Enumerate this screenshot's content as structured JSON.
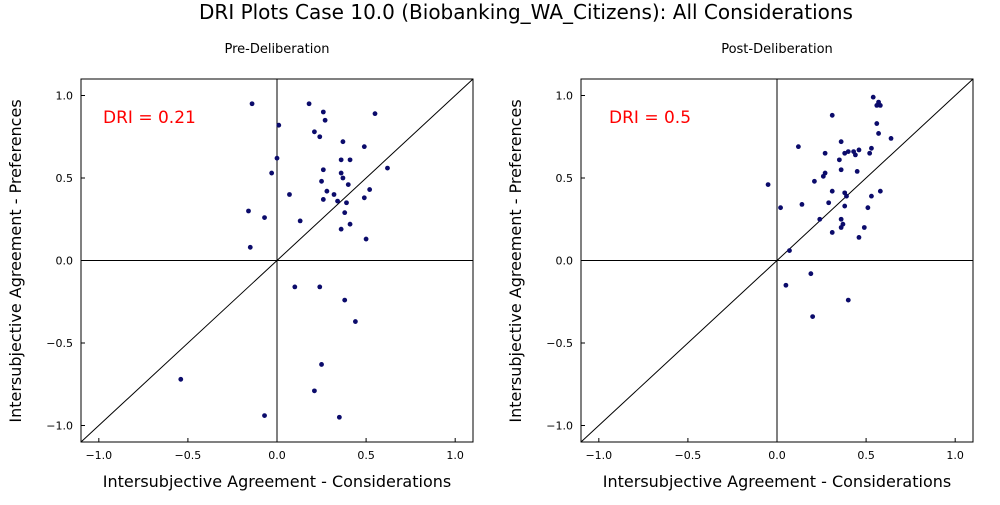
{
  "title": "DRI Plots Case 10.0 (Biobanking_WA_Citizens): All Considerations",
  "chart_data": [
    {
      "type": "scatter",
      "title": "Pre-Deliberation",
      "xlabel": "Intersubjective Agreement - Considerations",
      "ylabel": "Intersubjective Agreement - Preferences",
      "xlim": [
        -1.1,
        1.1
      ],
      "ylim": [
        -1.1,
        1.1
      ],
      "xticks": [
        -1.0,
        -0.5,
        0.0,
        0.5,
        1.0
      ],
      "yticks": [
        -1.0,
        -0.5,
        0.0,
        0.5,
        1.0
      ],
      "xtick_labels": [
        "−1.0",
        "−0.5",
        "0.0",
        "0.5",
        "1.0"
      ],
      "ytick_labels": [
        "−1.0",
        "−0.5",
        "0.0",
        "0.5",
        "1.0"
      ],
      "annotation": "DRI = 0.21",
      "points": [
        [
          -0.14,
          0.95
        ],
        [
          0.18,
          0.95
        ],
        [
          0.26,
          0.9
        ],
        [
          0.55,
          0.89
        ],
        [
          0.27,
          0.85
        ],
        [
          0.01,
          0.82
        ],
        [
          0.21,
          0.78
        ],
        [
          0.24,
          0.75
        ],
        [
          0.37,
          0.72
        ],
        [
          0.49,
          0.69
        ],
        [
          0.0,
          0.62
        ],
        [
          0.36,
          0.61
        ],
        [
          0.41,
          0.61
        ],
        [
          0.62,
          0.56
        ],
        [
          -0.03,
          0.53
        ],
        [
          0.26,
          0.55
        ],
        [
          0.36,
          0.53
        ],
        [
          0.37,
          0.5
        ],
        [
          0.25,
          0.48
        ],
        [
          0.4,
          0.46
        ],
        [
          0.52,
          0.43
        ],
        [
          0.28,
          0.42
        ],
        [
          0.07,
          0.4
        ],
        [
          0.32,
          0.4
        ],
        [
          0.49,
          0.38
        ],
        [
          0.26,
          0.37
        ],
        [
          0.34,
          0.36
        ],
        [
          0.39,
          0.35
        ],
        [
          -0.16,
          0.3
        ],
        [
          0.38,
          0.29
        ],
        [
          -0.07,
          0.26
        ],
        [
          0.13,
          0.24
        ],
        [
          0.41,
          0.22
        ],
        [
          0.36,
          0.19
        ],
        [
          0.5,
          0.13
        ],
        [
          -0.15,
          0.08
        ],
        [
          0.1,
          -0.16
        ],
        [
          0.24,
          -0.16
        ],
        [
          0.38,
          -0.24
        ],
        [
          0.44,
          -0.37
        ],
        [
          0.25,
          -0.63
        ],
        [
          -0.54,
          -0.72
        ],
        [
          0.21,
          -0.79
        ],
        [
          -0.07,
          -0.94
        ],
        [
          0.35,
          -0.95
        ]
      ]
    },
    {
      "type": "scatter",
      "title": "Post-Deliberation",
      "xlabel": "Intersubjective Agreement - Considerations",
      "ylabel": "Intersubjective Agreement - Preferences",
      "xlim": [
        -1.1,
        1.1
      ],
      "ylim": [
        -1.1,
        1.1
      ],
      "xticks": [
        -1.0,
        -0.5,
        0.0,
        0.5,
        1.0
      ],
      "yticks": [
        -1.0,
        -0.5,
        0.0,
        0.5,
        1.0
      ],
      "xtick_labels": [
        "−1.0",
        "−0.5",
        "0.0",
        "0.5",
        "1.0"
      ],
      "ytick_labels": [
        "−1.0",
        "−0.5",
        "0.0",
        "0.5",
        "1.0"
      ],
      "annotation": "DRI = 0.5",
      "points": [
        [
          0.54,
          0.99
        ],
        [
          0.57,
          0.96
        ],
        [
          0.56,
          0.94
        ],
        [
          0.58,
          0.94
        ],
        [
          0.31,
          0.88
        ],
        [
          0.56,
          0.83
        ],
        [
          0.57,
          0.77
        ],
        [
          0.64,
          0.74
        ],
        [
          0.36,
          0.72
        ],
        [
          0.12,
          0.69
        ],
        [
          0.53,
          0.68
        ],
        [
          0.4,
          0.66
        ],
        [
          0.43,
          0.66
        ],
        [
          0.46,
          0.67
        ],
        [
          0.44,
          0.64
        ],
        [
          0.38,
          0.65
        ],
        [
          0.27,
          0.65
        ],
        [
          0.52,
          0.65
        ],
        [
          0.35,
          0.61
        ],
        [
          0.45,
          0.54
        ],
        [
          0.27,
          0.53
        ],
        [
          0.26,
          0.51
        ],
        [
          0.36,
          0.55
        ],
        [
          0.21,
          0.48
        ],
        [
          -0.05,
          0.46
        ],
        [
          0.31,
          0.42
        ],
        [
          0.58,
          0.42
        ],
        [
          0.38,
          0.41
        ],
        [
          0.39,
          0.39
        ],
        [
          0.53,
          0.39
        ],
        [
          0.29,
          0.35
        ],
        [
          0.38,
          0.33
        ],
        [
          0.14,
          0.34
        ],
        [
          0.02,
          0.32
        ],
        [
          0.51,
          0.32
        ],
        [
          0.24,
          0.25
        ],
        [
          0.36,
          0.25
        ],
        [
          0.37,
          0.22
        ],
        [
          0.36,
          0.2
        ],
        [
          0.49,
          0.2
        ],
        [
          0.31,
          0.17
        ],
        [
          0.46,
          0.14
        ],
        [
          0.07,
          0.06
        ],
        [
          0.19,
          -0.08
        ],
        [
          0.05,
          -0.15
        ],
        [
          0.4,
          -0.24
        ],
        [
          0.2,
          -0.34
        ]
      ]
    }
  ]
}
